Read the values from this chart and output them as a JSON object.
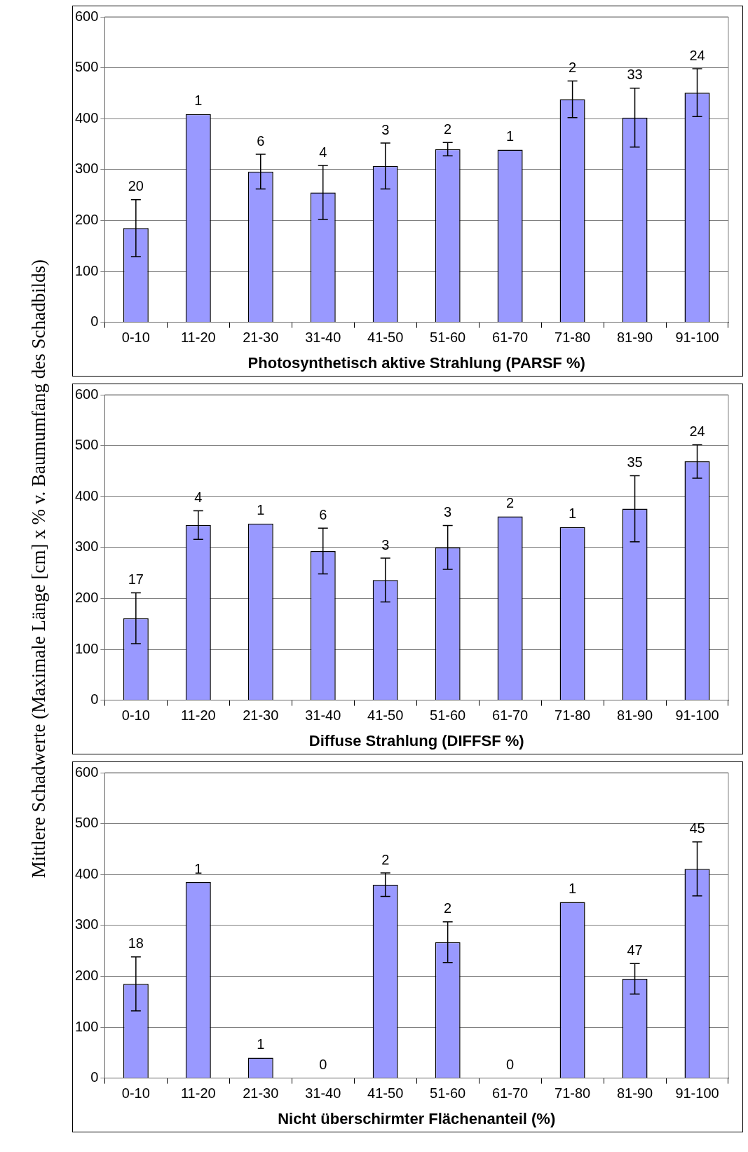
{
  "chart_data": [
    {
      "type": "bar",
      "ylabel": "Mittlere Schadwerte  (Maximale Länge [cm] x % v. Baumumfang des Schadbilds)",
      "xlabel": "Photosynthetisch aktive Strahlung (PARSF %)",
      "categories": [
        "0-10",
        "11-20",
        "21-30",
        "31-40",
        "41-50",
        "51-60",
        "61-70",
        "71-80",
        "81-90",
        "91-100"
      ],
      "color": "#9999ff",
      "values": [
        185,
        409,
        296,
        255,
        307,
        340,
        339,
        438,
        402,
        451
      ],
      "errors": [
        56,
        null,
        34,
        53,
        45,
        13,
        null,
        36,
        58,
        47
      ],
      "ylim": [
        0,
        600
      ],
      "yticks": [
        0,
        100,
        200,
        300,
        400,
        500,
        600
      ],
      "grid": "y",
      "annotations": [
        {
          "text": "20",
          "x": "0-10",
          "y": 241
        },
        {
          "text": "1",
          "x": "11-20",
          "y": 409
        },
        {
          "text": "6",
          "x": "21-30",
          "y": 330
        },
        {
          "text": "4",
          "x": "31-40",
          "y": 308
        },
        {
          "text": "3",
          "x": "41-50",
          "y": 352
        },
        {
          "text": "2",
          "x": "51-60",
          "y": 353
        },
        {
          "text": "1",
          "x": "61-70",
          "y": 339
        },
        {
          "text": "2",
          "x": "71-80",
          "y": 474
        },
        {
          "text": "33",
          "x": "81-90",
          "y": 460
        },
        {
          "text": "24",
          "x": "91-100",
          "y": 498
        }
      ]
    },
    {
      "type": "bar",
      "xlabel": "Diffuse Strahlung (DIFFSF %)",
      "categories": [
        "0-10",
        "11-20",
        "21-30",
        "31-40",
        "41-50",
        "51-60",
        "61-70",
        "71-80",
        "81-90",
        "91-100"
      ],
      "color": "#9999ff",
      "values": [
        161,
        344,
        347,
        293,
        236,
        300,
        361,
        340,
        376,
        469
      ],
      "errors": [
        50,
        28,
        null,
        45,
        43,
        43,
        null,
        null,
        65,
        33
      ],
      "ylim": [
        0,
        600
      ],
      "yticks": [
        0,
        100,
        200,
        300,
        400,
        500,
        600
      ],
      "grid": "y",
      "annotations": [
        {
          "text": "17",
          "x": "0-10",
          "y": 211
        },
        {
          "text": "4",
          "x": "11-20",
          "y": 372
        },
        {
          "text": "1",
          "x": "21-30",
          "y": 347
        },
        {
          "text": "6",
          "x": "31-40",
          "y": 338
        },
        {
          "text": "3",
          "x": "41-50",
          "y": 279
        },
        {
          "text": "3",
          "x": "51-60",
          "y": 343
        },
        {
          "text": "2",
          "x": "61-70",
          "y": 361
        },
        {
          "text": "1",
          "x": "71-80",
          "y": 340
        },
        {
          "text": "35",
          "x": "81-90",
          "y": 441
        },
        {
          "text": "24",
          "x": "91-100",
          "y": 502
        }
      ]
    },
    {
      "type": "bar",
      "xlabel": "Nicht überschirmter Flächenanteil (%)",
      "categories": [
        "0-10",
        "11-20",
        "21-30",
        "31-40",
        "41-50",
        "51-60",
        "61-70",
        "71-80",
        "81-90",
        "91-100"
      ],
      "color": "#9999ff",
      "values": [
        185,
        385,
        40,
        0,
        380,
        267,
        0,
        346,
        195,
        411
      ],
      "errors": [
        53,
        null,
        null,
        null,
        23,
        40,
        null,
        null,
        30,
        53
      ],
      "ylim": [
        0,
        600
      ],
      "yticks": [
        0,
        100,
        200,
        300,
        400,
        500,
        600
      ],
      "grid": "y",
      "annotations": [
        {
          "text": "18",
          "x": "0-10",
          "y": 238
        },
        {
          "text": "1",
          "x": "11-20",
          "y": 385
        },
        {
          "text": "1",
          "x": "21-30",
          "y": 40
        },
        {
          "text": "0",
          "x": "31-40",
          "y": 0
        },
        {
          "text": "2",
          "x": "41-50",
          "y": 403
        },
        {
          "text": "2",
          "x": "51-60",
          "y": 307
        },
        {
          "text": "0",
          "x": "61-70",
          "y": 0
        },
        {
          "text": "1",
          "x": "71-80",
          "y": 346
        },
        {
          "text": "47",
          "x": "81-90",
          "y": 225
        },
        {
          "text": "45",
          "x": "91-100",
          "y": 464
        }
      ]
    }
  ]
}
